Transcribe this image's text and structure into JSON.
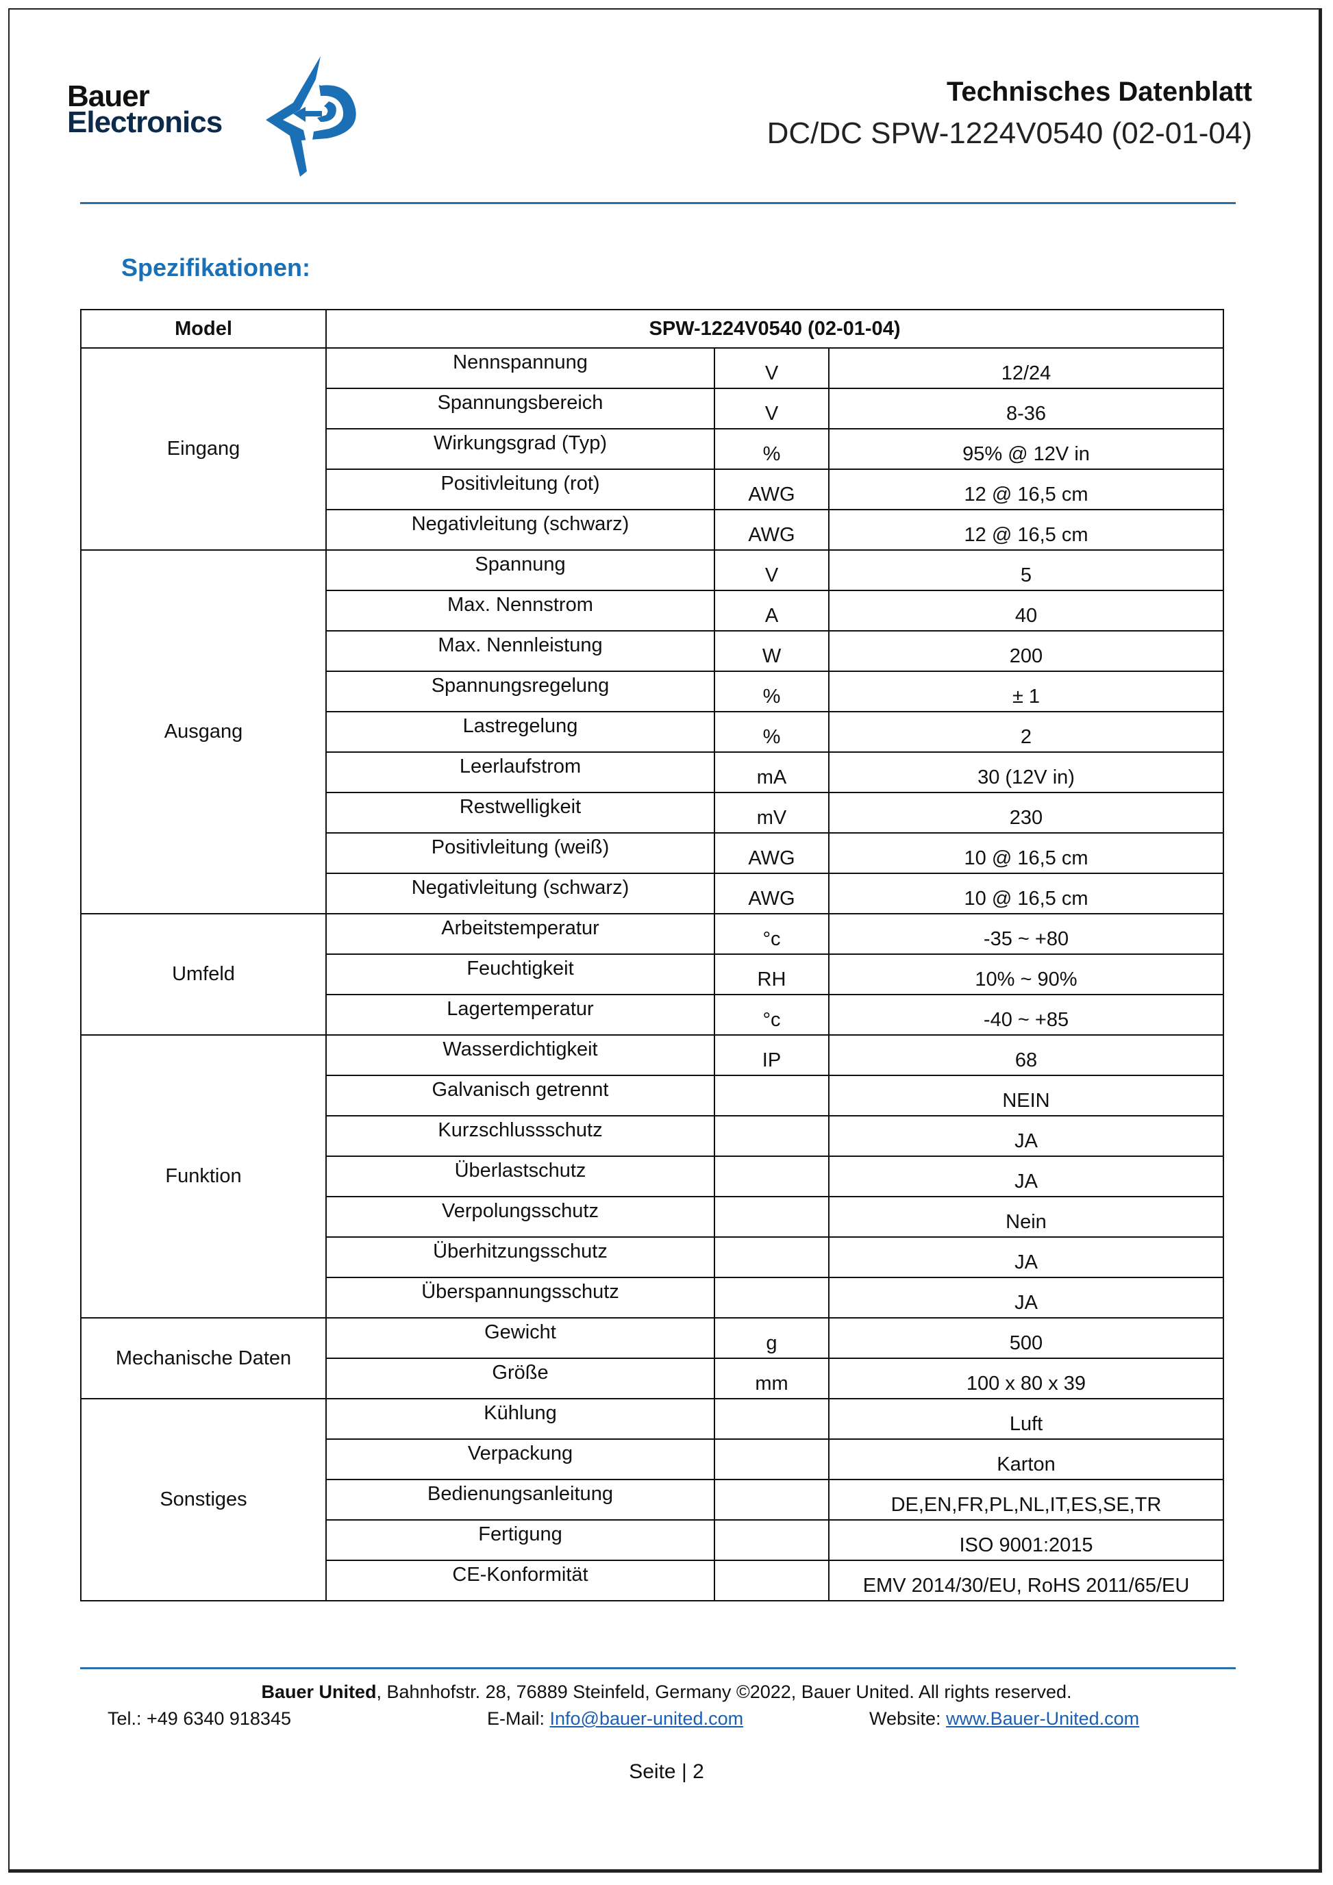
{
  "header": {
    "logo_text_line1": "Bauer",
    "logo_text_line2": "Electronics",
    "title": "Technisches Datenblatt",
    "subtitle": "DC/DC SPW-1224V0540 (02-01-04)"
  },
  "section_title": "Spezifikationen:",
  "table": {
    "header": {
      "model_label": "Model",
      "model_value": "SPW-1224V0540 (02-01-04)"
    },
    "groups": [
      {
        "name": "Eingang",
        "rows": [
          [
            "Nennspannung",
            "V",
            "12/24"
          ],
          [
            "Spannungsbereich",
            "V",
            "8-36"
          ],
          [
            "Wirkungsgrad (Typ)",
            "%",
            "95% @ 12V in"
          ],
          [
            "Positivleitung (rot)",
            "AWG",
            "12 @ 16,5 cm"
          ],
          [
            "Negativleitung (schwarz)",
            "AWG",
            "12 @ 16,5 cm"
          ]
        ]
      },
      {
        "name": "Ausgang",
        "rows": [
          [
            "Spannung",
            "V",
            "5"
          ],
          [
            "Max. Nennstrom",
            "A",
            "40"
          ],
          [
            "Max. Nennleistung",
            "W",
            "200"
          ],
          [
            "Spannungsregelung",
            "%",
            "± 1"
          ],
          [
            "Lastregelung",
            "%",
            "2"
          ],
          [
            "Leerlaufstrom",
            "mA",
            "30 (12V in)"
          ],
          [
            "Restwelligkeit",
            "mV",
            "230"
          ],
          [
            "Positivleitung (weiß)",
            "AWG",
            "10 @ 16,5 cm"
          ],
          [
            "Negativleitung (schwarz)",
            "AWG",
            "10 @ 16,5 cm"
          ]
        ]
      },
      {
        "name": "Umfeld",
        "rows": [
          [
            "Arbeitstemperatur",
            "°c",
            "-35 ~ +80"
          ],
          [
            "Feuchtigkeit",
            "RH",
            "10% ~ 90%"
          ],
          [
            "Lagertemperatur",
            "°c",
            "-40 ~ +85"
          ]
        ]
      },
      {
        "name": "Funktion",
        "rows": [
          [
            "Wasserdichtigkeit",
            "IP",
            "68"
          ],
          [
            "Galvanisch getrennt",
            "",
            "NEIN"
          ],
          [
            "Kurzschlussschutz",
            "",
            "JA"
          ],
          [
            "Überlastschutz",
            "",
            "JA"
          ],
          [
            "Verpolungsschutz",
            "",
            "Nein"
          ],
          [
            "Überhitzungsschutz",
            "",
            "JA"
          ],
          [
            "Überspannungsschutz",
            "",
            "JA"
          ]
        ]
      },
      {
        "name": "Mechanische Daten",
        "rows": [
          [
            "Gewicht",
            "g",
            "500"
          ],
          [
            "Größe",
            "mm",
            "100 x 80 x 39"
          ]
        ]
      },
      {
        "name": "Sonstiges",
        "rows": [
          [
            "Kühlung",
            "",
            "Luft"
          ],
          [
            "Verpackung",
            "",
            "Karton"
          ],
          [
            "Bedienungsanleitung",
            "",
            "DE,EN,FR,PL,NL,IT,ES,SE,TR"
          ],
          [
            "Fertigung",
            "",
            "ISO 9001:2015"
          ],
          [
            "CE-Konformität",
            "",
            "EMV 2014/30/EU, RoHS 2011/65/EU"
          ]
        ]
      }
    ]
  },
  "footer": {
    "company": "Bauer United",
    "address": ", Bahnhofstr. 28, 76889 Steinfeld, Germany ©2022, Bauer United. All rights reserved.",
    "tel": "Tel.: +49 6340 918345",
    "email_label": "E-Mail: ",
    "email": "Info@bauer-united.com",
    "website_label": "Website: ",
    "website": "www.Bauer-United.com",
    "page": "Seite | 2"
  },
  "colors": {
    "accent": "#1a6fb5",
    "rule": "#2a6fa8"
  }
}
